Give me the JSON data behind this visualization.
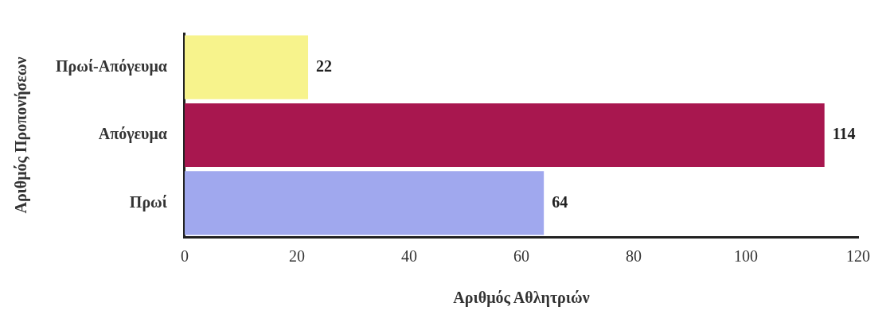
{
  "chart_data": {
    "type": "bar",
    "orientation": "horizontal",
    "categories": [
      "Πρωί-Απόγευμα",
      "Απόγευμα",
      "Πρωί"
    ],
    "values": [
      22,
      114,
      64
    ],
    "colors": [
      "#f7f38c",
      "#a8174f",
      "#a0a8ee"
    ],
    "xlim": [
      0,
      120
    ],
    "xticks": [
      0,
      20,
      40,
      60,
      80,
      100,
      120
    ],
    "xlabel": "Αριθμός Αθλητριών",
    "ylabel": "Αριθμός Προπονήσεων",
    "data_labels": true,
    "grid": false,
    "legend": false
  }
}
